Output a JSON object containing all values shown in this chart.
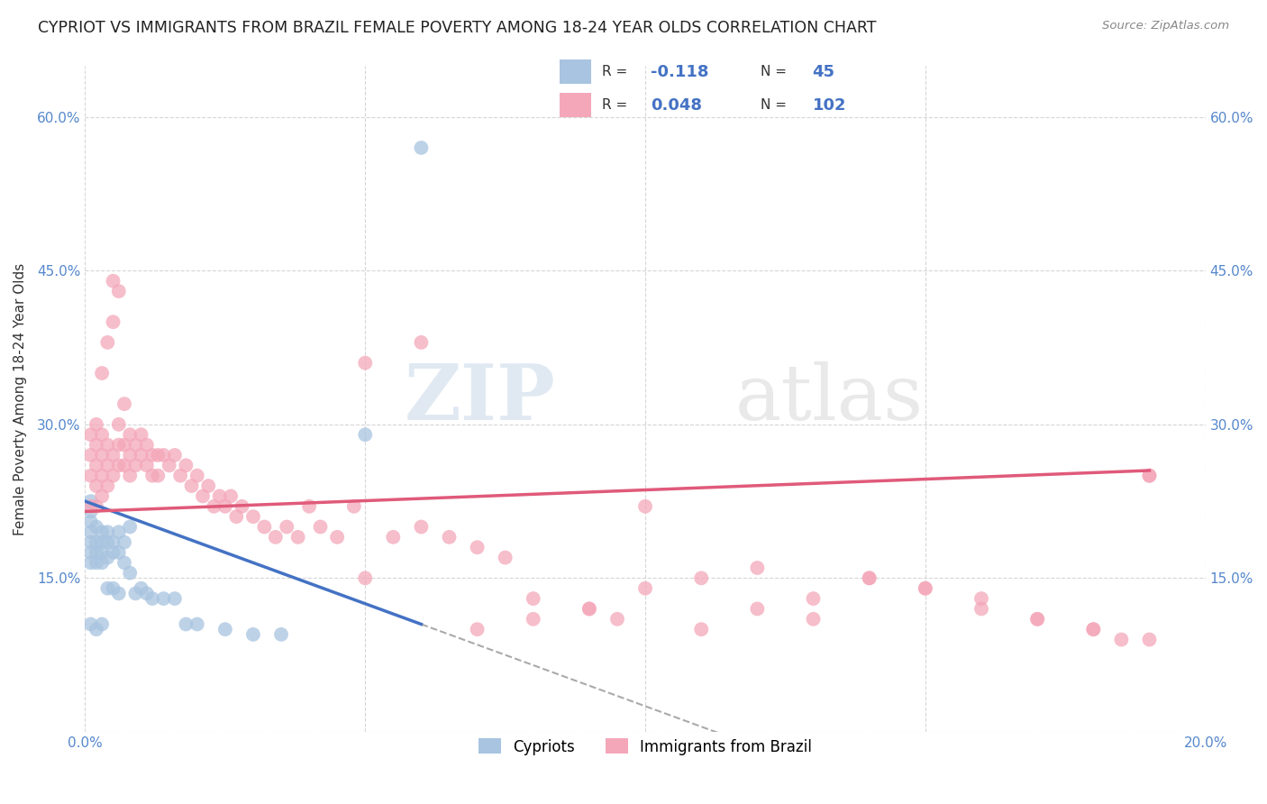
{
  "title": "CYPRIOT VS IMMIGRANTS FROM BRAZIL FEMALE POVERTY AMONG 18-24 YEAR OLDS CORRELATION CHART",
  "source": "Source: ZipAtlas.com",
  "ylabel": "Female Poverty Among 18-24 Year Olds",
  "xlim": [
    0.0,
    0.2
  ],
  "ylim": [
    0.0,
    0.65
  ],
  "xticks": [
    0.0,
    0.05,
    0.1,
    0.15,
    0.2
  ],
  "xticklabels": [
    "0.0%",
    "",
    "",
    "",
    "20.0%"
  ],
  "yticks": [
    0.0,
    0.15,
    0.3,
    0.45,
    0.6
  ],
  "yticklabels": [
    "",
    "15.0%",
    "30.0%",
    "45.0%",
    "60.0%"
  ],
  "legend_R1": "-0.118",
  "legend_N1": "45",
  "legend_R2": "0.048",
  "legend_N2": "102",
  "legend_label1": "Cypriots",
  "legend_label2": "Immigrants from Brazil",
  "cypriot_color": "#a8c4e0",
  "brazil_color": "#f4a7b9",
  "trendline1_color": "#4472c4",
  "trendline2_color": "#e05a7a",
  "grid_color": "#cccccc",
  "background_color": "#ffffff",
  "watermark_zip": "ZIP",
  "watermark_atlas": "atlas",
  "cypriot_x": [
    0.001,
    0.001,
    0.001,
    0.001,
    0.001,
    0.001,
    0.001,
    0.001,
    0.002,
    0.002,
    0.002,
    0.002,
    0.002,
    0.003,
    0.003,
    0.003,
    0.003,
    0.003,
    0.004,
    0.004,
    0.004,
    0.004,
    0.005,
    0.005,
    0.005,
    0.006,
    0.006,
    0.006,
    0.007,
    0.007,
    0.008,
    0.008,
    0.009,
    0.01,
    0.011,
    0.012,
    0.014,
    0.016,
    0.018,
    0.02,
    0.025,
    0.03,
    0.035,
    0.05,
    0.06
  ],
  "cypriot_y": [
    0.225,
    0.215,
    0.205,
    0.195,
    0.185,
    0.175,
    0.165,
    0.105,
    0.2,
    0.185,
    0.175,
    0.165,
    0.1,
    0.195,
    0.185,
    0.175,
    0.165,
    0.105,
    0.195,
    0.185,
    0.17,
    0.14,
    0.185,
    0.175,
    0.14,
    0.195,
    0.175,
    0.135,
    0.185,
    0.165,
    0.2,
    0.155,
    0.135,
    0.14,
    0.135,
    0.13,
    0.13,
    0.13,
    0.105,
    0.105,
    0.1,
    0.095,
    0.095,
    0.29,
    0.57
  ],
  "brazil_x": [
    0.001,
    0.001,
    0.001,
    0.001,
    0.002,
    0.002,
    0.002,
    0.002,
    0.002,
    0.003,
    0.003,
    0.003,
    0.003,
    0.003,
    0.004,
    0.004,
    0.004,
    0.004,
    0.005,
    0.005,
    0.005,
    0.005,
    0.006,
    0.006,
    0.006,
    0.006,
    0.007,
    0.007,
    0.007,
    0.008,
    0.008,
    0.008,
    0.009,
    0.009,
    0.01,
    0.01,
    0.011,
    0.011,
    0.012,
    0.012,
    0.013,
    0.013,
    0.014,
    0.015,
    0.016,
    0.017,
    0.018,
    0.019,
    0.02,
    0.021,
    0.022,
    0.023,
    0.024,
    0.025,
    0.026,
    0.027,
    0.028,
    0.03,
    0.032,
    0.034,
    0.036,
    0.038,
    0.04,
    0.042,
    0.045,
    0.048,
    0.05,
    0.055,
    0.06,
    0.065,
    0.07,
    0.075,
    0.08,
    0.09,
    0.095,
    0.1,
    0.11,
    0.12,
    0.13,
    0.14,
    0.15,
    0.16,
    0.17,
    0.18,
    0.185,
    0.19,
    0.05,
    0.06,
    0.07,
    0.08,
    0.09,
    0.1,
    0.11,
    0.12,
    0.13,
    0.14,
    0.15,
    0.16,
    0.17,
    0.18,
    0.19,
    0.19
  ],
  "brazil_y": [
    0.25,
    0.27,
    0.29,
    0.22,
    0.28,
    0.3,
    0.26,
    0.24,
    0.22,
    0.29,
    0.27,
    0.25,
    0.23,
    0.35,
    0.28,
    0.26,
    0.24,
    0.38,
    0.4,
    0.27,
    0.25,
    0.44,
    0.43,
    0.3,
    0.28,
    0.26,
    0.32,
    0.28,
    0.26,
    0.29,
    0.27,
    0.25,
    0.28,
    0.26,
    0.29,
    0.27,
    0.28,
    0.26,
    0.27,
    0.25,
    0.27,
    0.25,
    0.27,
    0.26,
    0.27,
    0.25,
    0.26,
    0.24,
    0.25,
    0.23,
    0.24,
    0.22,
    0.23,
    0.22,
    0.23,
    0.21,
    0.22,
    0.21,
    0.2,
    0.19,
    0.2,
    0.19,
    0.22,
    0.2,
    0.19,
    0.22,
    0.15,
    0.19,
    0.2,
    0.19,
    0.18,
    0.17,
    0.13,
    0.12,
    0.11,
    0.22,
    0.1,
    0.12,
    0.11,
    0.15,
    0.14,
    0.13,
    0.11,
    0.1,
    0.09,
    0.25,
    0.36,
    0.38,
    0.1,
    0.11,
    0.12,
    0.14,
    0.15,
    0.16,
    0.13,
    0.15,
    0.14,
    0.12,
    0.11,
    0.1,
    0.09,
    0.25
  ]
}
